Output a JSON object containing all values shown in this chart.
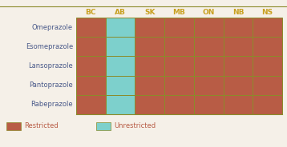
{
  "columns": [
    "BC",
    "AB",
    "SK",
    "MB",
    "ON",
    "NB",
    "NS"
  ],
  "rows": [
    "Omeprazole",
    "Esomeprazole",
    "Lansoprazole",
    "Pantoprazole",
    "Rabeprazole"
  ],
  "restricted_color": "#b85c45",
  "unrestricted_color": "#7dd0cc",
  "grid_color": "#8b8b2a",
  "text_color_header": "#c8a020",
  "text_color_row": "#4a5a8a",
  "text_color_legend": "#b85c45",
  "background_color": "#f5f0e8",
  "cell_data": [
    [
      "R",
      "U",
      "R",
      "R",
      "R",
      "R",
      "R"
    ],
    [
      "R",
      "U",
      "R",
      "R",
      "R",
      "R",
      "R"
    ],
    [
      "R",
      "U",
      "R",
      "R",
      "R",
      "R",
      "R"
    ],
    [
      "R",
      "U",
      "R",
      "R",
      "R",
      "R",
      "R"
    ],
    [
      "R",
      "U",
      "R",
      "R",
      "R",
      "R",
      "R"
    ]
  ],
  "col_header_fontsize": 6.5,
  "row_label_fontsize": 6.0,
  "legend_fontsize": 6.0
}
